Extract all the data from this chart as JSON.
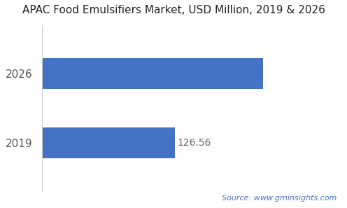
{
  "title": "APAC Food Emulsifiers Market, USD Million, 2019 & 2026",
  "categories": [
    "2019",
    "2026"
  ],
  "values": [
    126.56,
    210.0
  ],
  "bar_color": "#4472c4",
  "label_2019": "126.56",
  "background_color": "#ffffff",
  "source_text": "Source: www.gminsights.com",
  "source_color": "#4472c4",
  "xlim": [
    0,
    250
  ],
  "title_fontsize": 11,
  "tick_fontsize": 11,
  "label_fontsize": 10,
  "bar_height": 0.45
}
